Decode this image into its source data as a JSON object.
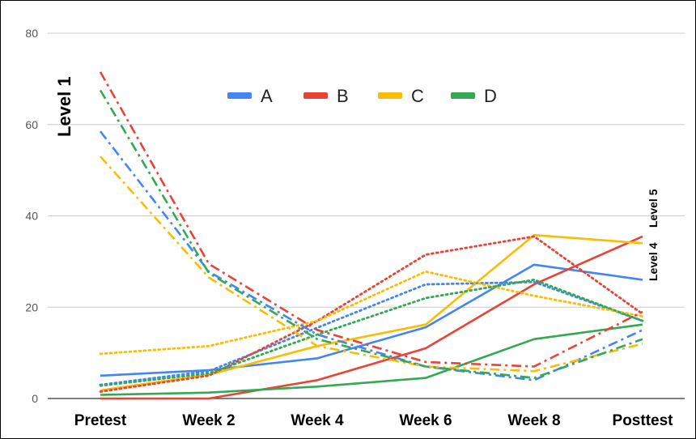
{
  "chart_data": {
    "type": "line",
    "categories": [
      "Pretest",
      "Week 2",
      "Week 4",
      "Week 6",
      "Week 8",
      "Posttest"
    ],
    "ylim": [
      0,
      80
    ],
    "yticks": [
      0,
      20,
      40,
      60,
      80
    ],
    "grid": true,
    "legend_placement": "top-center",
    "legend": [
      {
        "label": "A",
        "color": "#4285F4"
      },
      {
        "label": "B",
        "color": "#EA4335"
      },
      {
        "label": "C",
        "color": "#FBBC04"
      },
      {
        "label": "D",
        "color": "#34A853"
      }
    ],
    "annotations": {
      "left": "Level 1",
      "right_a": "Level 4",
      "right_b": "Level 5"
    },
    "series": [
      {
        "group": "A",
        "style": "solid",
        "color": "#4285F4",
        "values": [
          5,
          6.2,
          8.8,
          15.6,
          29.3,
          26
        ]
      },
      {
        "group": "B",
        "style": "solid",
        "color": "#EA4335",
        "values": [
          0,
          0,
          4,
          11,
          25,
          35.5
        ]
      },
      {
        "group": "C",
        "style": "solid",
        "color": "#FBBC04",
        "values": [
          1.8,
          5.2,
          11.5,
          16.2,
          35.8,
          34
        ]
      },
      {
        "group": "D",
        "style": "solid",
        "color": "#34A853",
        "values": [
          0.8,
          1.3,
          2.6,
          4.5,
          13,
          16.2
        ]
      },
      {
        "group": "A",
        "style": "dotted",
        "color": "#4285F4",
        "values": [
          3,
          6,
          15.5,
          25,
          25.5,
          17
        ]
      },
      {
        "group": "B",
        "style": "dotted",
        "color": "#EA4335",
        "values": [
          1.5,
          5,
          17,
          31.5,
          35.5,
          18.5
        ]
      },
      {
        "group": "C",
        "style": "dotted",
        "color": "#FBBC04",
        "values": [
          9.8,
          11.5,
          17,
          27.8,
          22.5,
          18
        ]
      },
      {
        "group": "D",
        "style": "dotted",
        "color": "#34A853",
        "values": [
          2.8,
          5.5,
          14,
          22,
          26,
          17
        ]
      },
      {
        "group": "A",
        "style": "dashdot",
        "color": "#4285F4",
        "values": [
          58.5,
          27.8,
          14,
          7,
          4,
          15
        ]
      },
      {
        "group": "B",
        "style": "dashdot",
        "color": "#EA4335",
        "values": [
          71.5,
          29.5,
          15,
          8,
          7,
          19
        ]
      },
      {
        "group": "C",
        "style": "dashdot",
        "color": "#FBBC04",
        "values": [
          53,
          26.5,
          11.5,
          7,
          6,
          12
        ]
      },
      {
        "group": "D",
        "style": "dashdot",
        "color": "#34A853",
        "values": [
          67.5,
          27.5,
          13,
          7,
          4.5,
          13
        ]
      }
    ]
  }
}
